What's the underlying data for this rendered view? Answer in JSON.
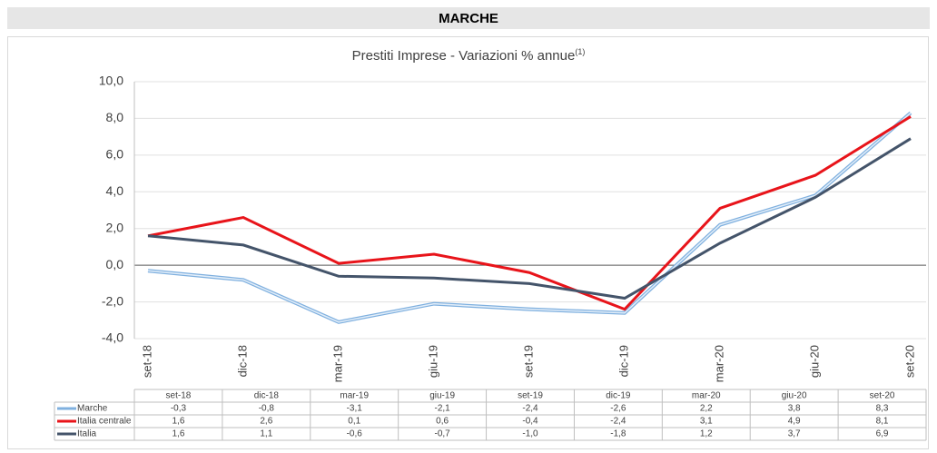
{
  "header": {
    "title": "MARCHE"
  },
  "chart_data": {
    "type": "line",
    "title": "Prestiti Imprese - Variazioni % annue",
    "title_note": "(1)",
    "categories": [
      "set-18",
      "dic-18",
      "mar-19",
      "giu-19",
      "set-19",
      "dic-19",
      "mar-20",
      "giu-20",
      "set-20"
    ],
    "ylim": [
      -4,
      10
    ],
    "yticks": [
      {
        "value": -4,
        "label": "-4,0"
      },
      {
        "value": -2,
        "label": "-2,0"
      },
      {
        "value": 0,
        "label": "0,0"
      },
      {
        "value": 2,
        "label": "2,0"
      },
      {
        "value": 4,
        "label": "4,0"
      },
      {
        "value": 6,
        "label": "6,0"
      },
      {
        "value": 8,
        "label": "8,0"
      },
      {
        "value": 10,
        "label": "10,0"
      }
    ],
    "grid": true,
    "series": [
      {
        "name": "Marche",
        "color": "#7fb0df",
        "values": [
          -0.3,
          -0.8,
          -3.1,
          -2.1,
          -2.4,
          -2.6,
          2.2,
          3.8,
          8.3
        ],
        "value_labels": [
          "-0,3",
          "-0,8",
          "-3,1",
          "-2,1",
          "-2,4",
          "-2,6",
          "2,2",
          "3,8",
          "8,3"
        ]
      },
      {
        "name": "Italia centrale",
        "color": "#e8141a",
        "values": [
          1.6,
          2.6,
          0.1,
          0.6,
          -0.4,
          -2.4,
          3.1,
          4.9,
          8.1
        ],
        "value_labels": [
          "1,6",
          "2,6",
          "0,1",
          "0,6",
          "-0,4",
          "-2,4",
          "3,1",
          "4,9",
          "8,1"
        ]
      },
      {
        "name": "Italia",
        "color": "#44546a",
        "values": [
          1.6,
          1.1,
          -0.6,
          -0.7,
          -1.0,
          -1.8,
          1.2,
          3.7,
          6.9
        ],
        "value_labels": [
          "1,6",
          "1,1",
          "-0,6",
          "-0,7",
          "-1,0",
          "-1,8",
          "1,2",
          "3,7",
          "6,9"
        ]
      }
    ]
  }
}
